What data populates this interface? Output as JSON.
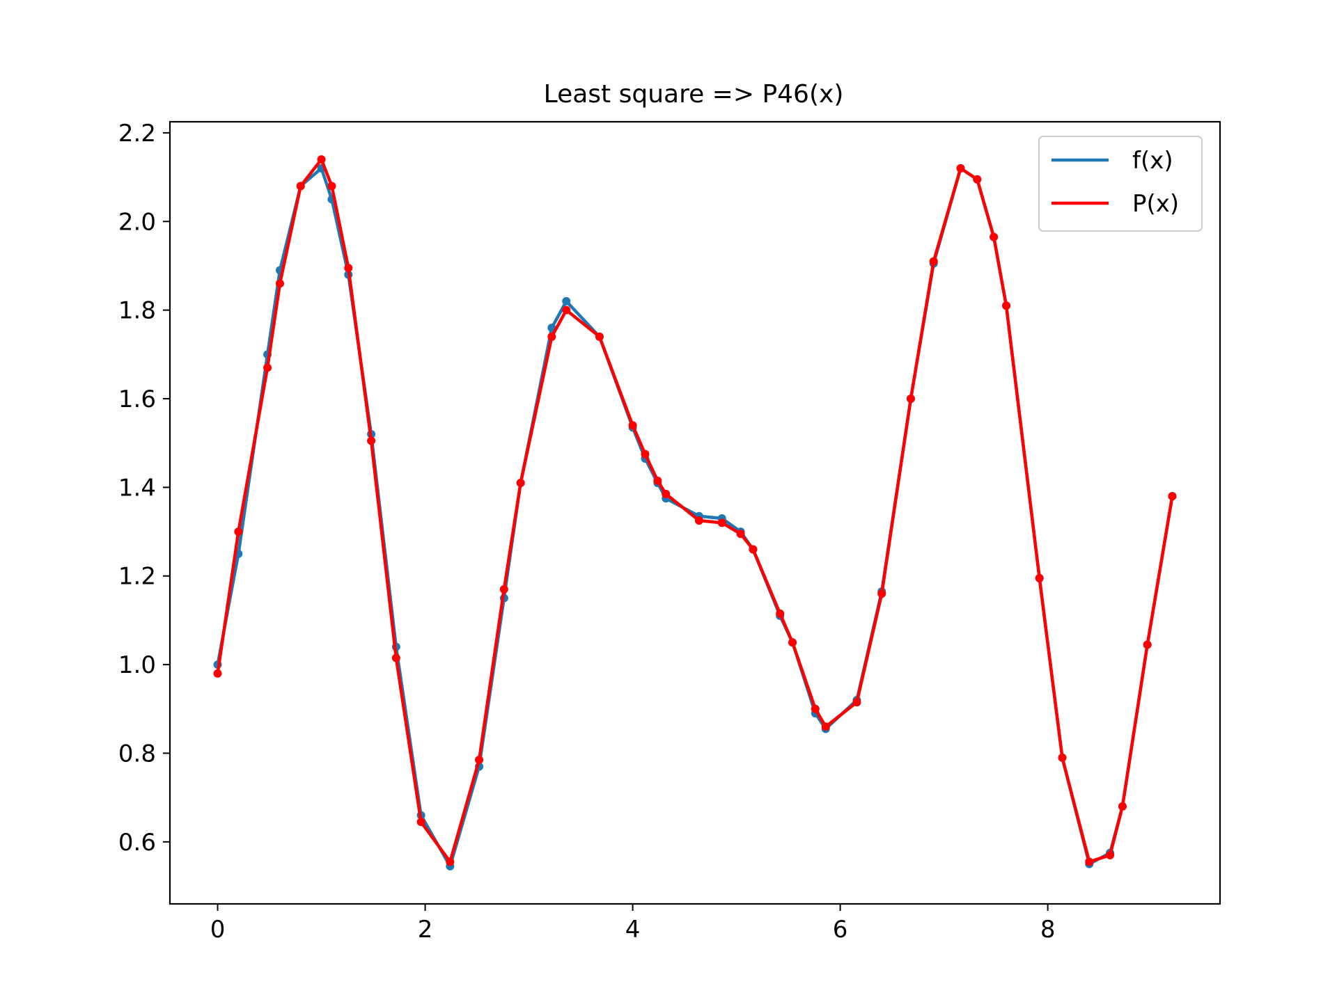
{
  "chart_data": {
    "type": "line",
    "title": "Least square => P46(x)",
    "xlabel": "",
    "ylabel": "",
    "xlim": [
      -0.46,
      9.66
    ],
    "ylim": [
      0.46,
      2.225
    ],
    "xticks": [
      0,
      2,
      4,
      6,
      8
    ],
    "xtick_labels": [
      "0",
      "2",
      "4",
      "6",
      "8"
    ],
    "yticks": [
      0.6,
      0.8,
      1.0,
      1.2,
      1.4,
      1.6,
      1.8,
      2.0,
      2.2
    ],
    "ytick_labels": [
      "0.6",
      "0.8",
      "1.0",
      "1.2",
      "1.4",
      "1.6",
      "1.8",
      "2.0",
      "2.2"
    ],
    "grid": false,
    "legend_position": "top-right",
    "series": [
      {
        "name": "f(x)",
        "color": "#1f77b4",
        "x": [
          0,
          0.2,
          0.48,
          0.6,
          0.8,
          1.0,
          1.1,
          1.26,
          1.48,
          1.72,
          1.96,
          2.24,
          2.52,
          2.76,
          2.92,
          3.22,
          3.36,
          3.68,
          4.0,
          4.12,
          4.24,
          4.32,
          4.64,
          4.86,
          5.04,
          5.16,
          5.42,
          5.54,
          5.76,
          5.86,
          6.16,
          6.4,
          6.68,
          6.9,
          7.16,
          7.32,
          7.48,
          7.6,
          7.92,
          8.14,
          8.4,
          8.6,
          8.72,
          8.96,
          9.2
        ],
        "y": [
          1.0,
          1.25,
          1.7,
          1.89,
          2.08,
          2.12,
          2.05,
          1.88,
          1.52,
          1.04,
          0.66,
          0.545,
          0.77,
          1.15,
          1.41,
          1.76,
          1.82,
          1.74,
          1.535,
          1.465,
          1.41,
          1.375,
          1.335,
          1.33,
          1.3,
          1.26,
          1.11,
          1.05,
          0.89,
          0.855,
          0.92,
          1.165,
          1.6,
          1.905,
          2.12,
          2.095,
          1.965,
          1.81,
          1.195,
          0.79,
          0.55,
          0.575,
          0.68,
          1.045,
          1.38
        ]
      },
      {
        "name": "P(x)",
        "color": "#ff0000",
        "x": [
          0,
          0.2,
          0.48,
          0.6,
          0.8,
          1.0,
          1.1,
          1.26,
          1.48,
          1.72,
          1.96,
          2.24,
          2.52,
          2.76,
          2.92,
          3.22,
          3.36,
          3.68,
          4.0,
          4.12,
          4.24,
          4.32,
          4.64,
          4.86,
          5.04,
          5.16,
          5.42,
          5.54,
          5.76,
          5.86,
          6.16,
          6.4,
          6.68,
          6.9,
          7.16,
          7.32,
          7.48,
          7.6,
          7.92,
          8.14,
          8.4,
          8.6,
          8.72,
          8.96,
          9.2
        ],
        "y": [
          0.98,
          1.3,
          1.67,
          1.86,
          2.08,
          2.14,
          2.08,
          1.895,
          1.505,
          1.015,
          0.645,
          0.555,
          0.785,
          1.17,
          1.41,
          1.74,
          1.8,
          1.74,
          1.54,
          1.475,
          1.415,
          1.385,
          1.325,
          1.32,
          1.295,
          1.26,
          1.115,
          1.05,
          0.9,
          0.86,
          0.915,
          1.16,
          1.6,
          1.91,
          2.12,
          2.095,
          1.965,
          1.81,
          1.195,
          0.79,
          0.555,
          0.57,
          0.68,
          1.045,
          1.38
        ]
      }
    ]
  }
}
